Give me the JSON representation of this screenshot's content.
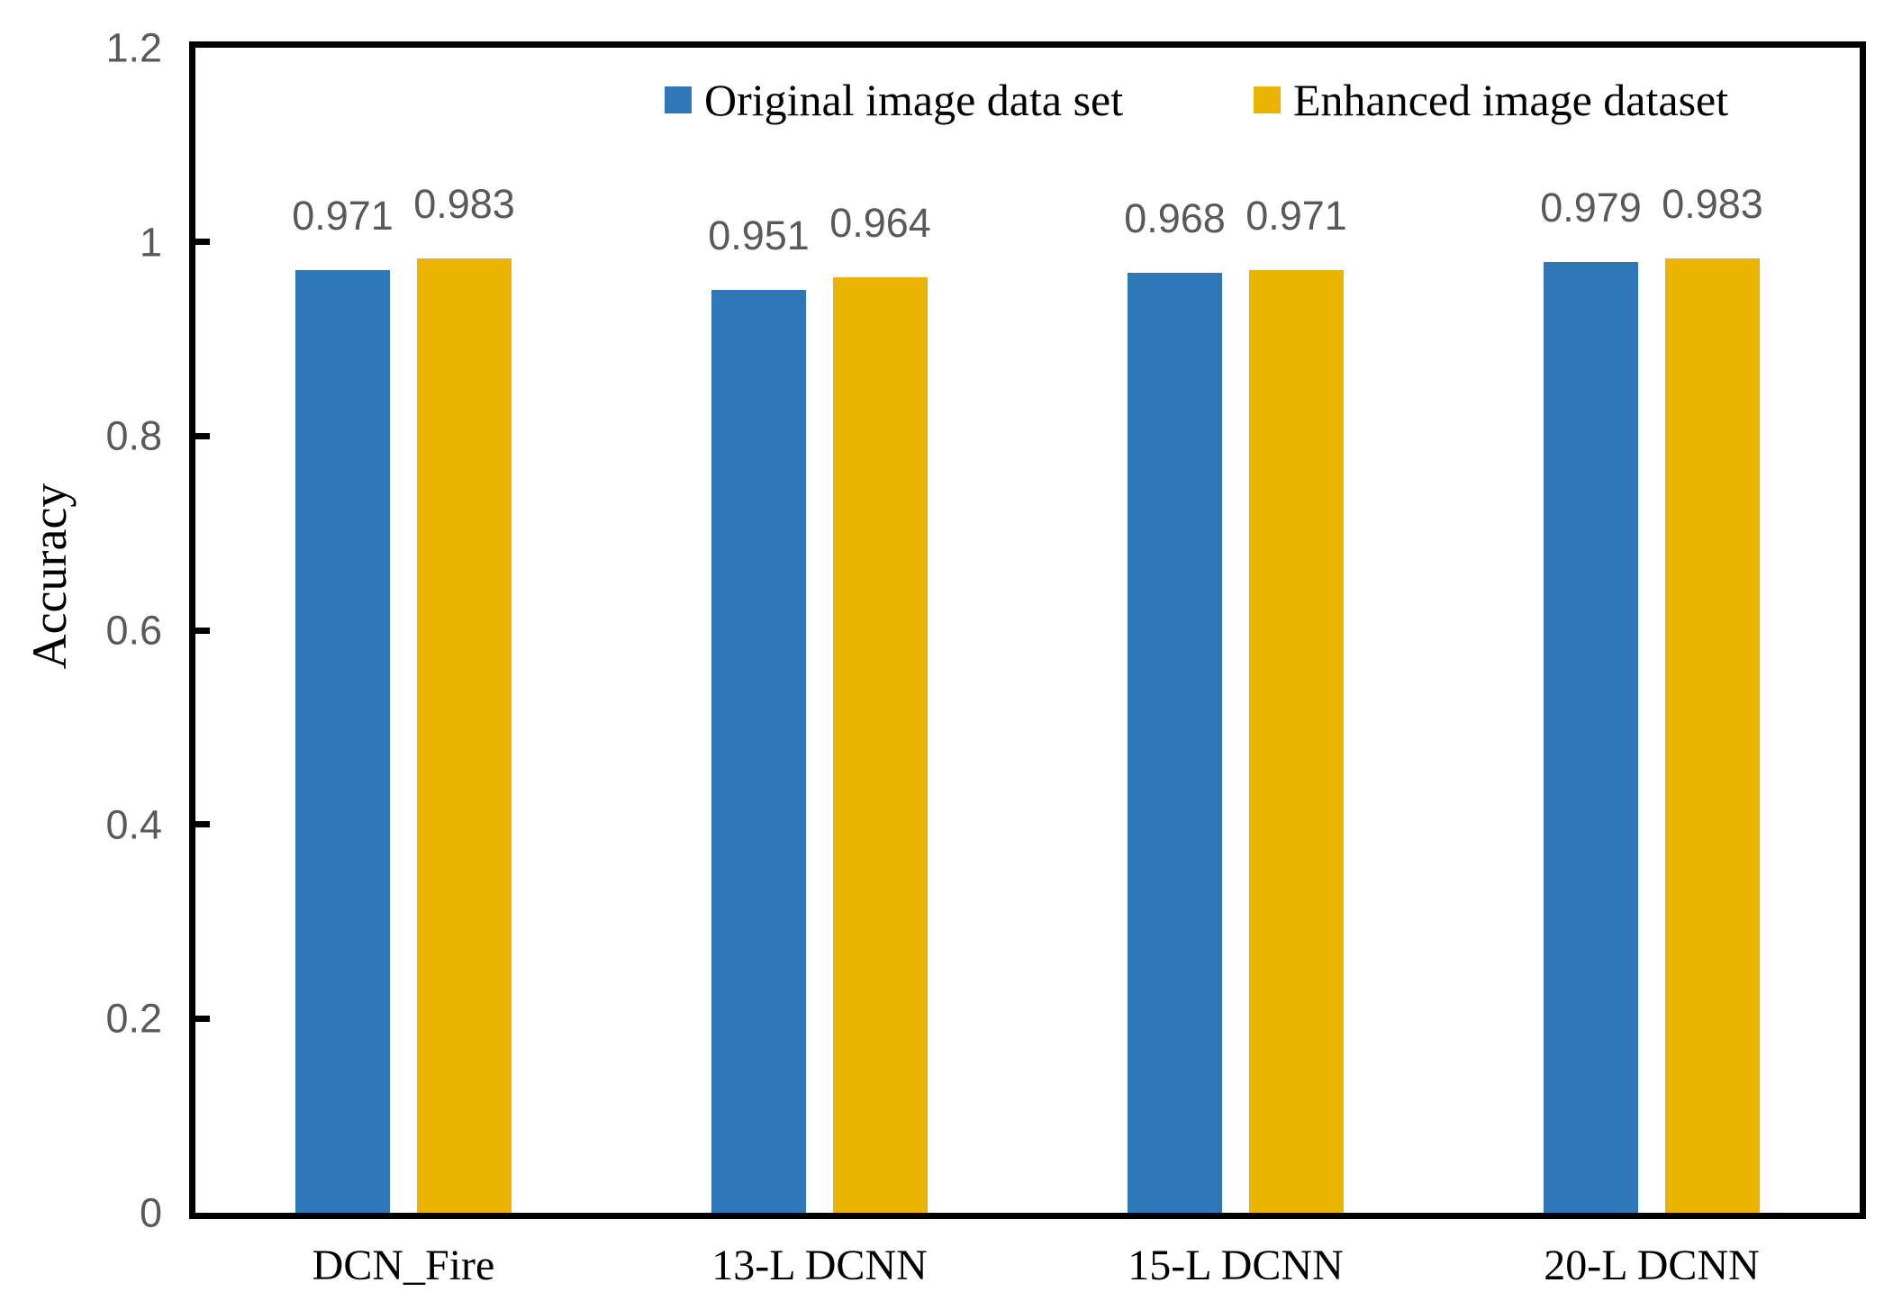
{
  "chart_data": {
    "type": "bar",
    "title": "",
    "xlabel": "",
    "ylabel": "Accuracy",
    "categories": [
      "DCN_Fire",
      "13-L DCNN",
      "15-L DCNN",
      "20-L DCNN"
    ],
    "series": [
      {
        "name": "Original image data set",
        "color": "#2E77B8",
        "values": [
          0.971,
          0.951,
          0.968,
          0.979
        ],
        "value_labels": [
          "0.971",
          "0.951",
          "0.968",
          "0.979"
        ]
      },
      {
        "name": "Enhanced image dataset",
        "color": "#EBB400",
        "values": [
          0.983,
          0.964,
          0.971,
          0.983
        ],
        "value_labels": [
          "0.983",
          "0.964",
          "0.971",
          "0.983"
        ]
      }
    ],
    "ylim": [
      0,
      1.2
    ],
    "yticks": [
      {
        "value": 0,
        "label": "0"
      },
      {
        "value": 0.2,
        "label": "0.2"
      },
      {
        "value": 0.4,
        "label": "0.4"
      },
      {
        "value": 0.6,
        "label": "0.6"
      },
      {
        "value": 0.8,
        "label": "0.8"
      },
      {
        "value": 1,
        "label": "1"
      },
      {
        "value": 1.2,
        "label": "1.2"
      }
    ],
    "grid": false,
    "legend_position": "top-inside",
    "data_labels_visible": true
  },
  "colors": {
    "background": "#FFFFFF",
    "axis_line": "#000000",
    "tick_label": "#595959",
    "data_label": "#595959",
    "category_label": "#000000",
    "series_blue": "#2E77B8",
    "series_yellow": "#EBB400"
  }
}
